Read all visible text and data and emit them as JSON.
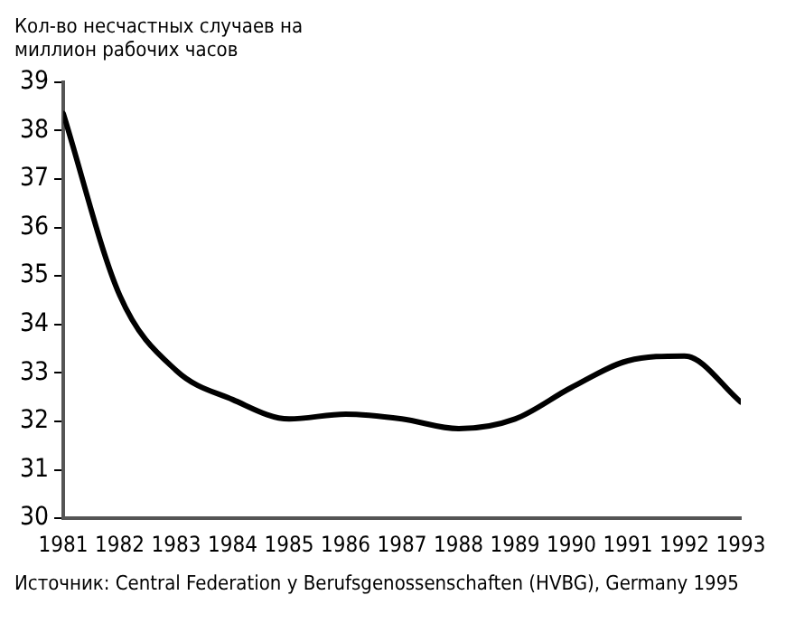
{
  "chart_data": {
    "type": "line",
    "ylabel": "Кол-во несчастных случаев на миллион рабочих часов",
    "x": [
      1981,
      1982,
      1983,
      1984,
      1985,
      1986,
      1987,
      1988,
      1989,
      1990,
      1991,
      1992,
      1993
    ],
    "series": [
      {
        "color": "#000000",
        "values": [
          38.35,
          34.6,
          33.05,
          32.45,
          32.05,
          32.15,
          32.05,
          31.85,
          32.05,
          32.7,
          33.25,
          33.35,
          32.4
        ]
      }
    ],
    "xlim": [
      1981,
      1993
    ],
    "xticks": [
      1981,
      1982,
      1983,
      1984,
      1985,
      1986,
      1987,
      1988,
      1989,
      1990,
      1991,
      1992,
      1993
    ],
    "ylim": [
      30,
      39
    ],
    "yticks": [
      30,
      31,
      32,
      33,
      34,
      35,
      36,
      37,
      38,
      39
    ],
    "grid": false,
    "legend": false,
    "marker": "none",
    "line_style": "solid",
    "annotations": [
      "Источник: Central Federation y Berufsgenossenschaften (HVBG), Germany 1995"
    ]
  }
}
